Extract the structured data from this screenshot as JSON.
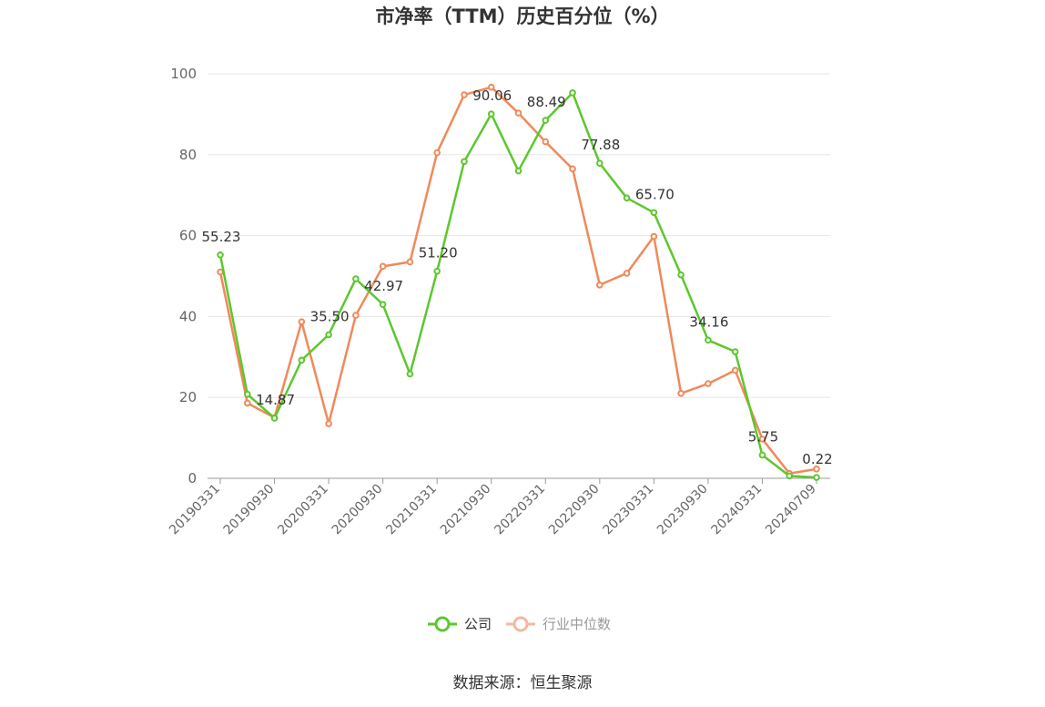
{
  "chart_data": {
    "type": "line",
    "title": "市净率（TTM）历史百分位（%）",
    "xlabel": "",
    "ylabel": "",
    "ylim": [
      0,
      100
    ],
    "yticks": [
      0,
      20,
      40,
      60,
      80,
      100
    ],
    "grid": true,
    "legend_position": "bottom",
    "x": [
      "20190331",
      "20190630",
      "20190930",
      "20191231",
      "20200331",
      "20200630",
      "20200930",
      "20201231",
      "20210331",
      "20210630",
      "20210930",
      "20211231",
      "20220331",
      "20220630",
      "20220930",
      "20221231",
      "20230331",
      "20230630",
      "20230930",
      "20231231",
      "20240331",
      "20240630",
      "20240709"
    ],
    "x_tick_labels": [
      "20190331",
      "20190930",
      "20200331",
      "20200930",
      "20210331",
      "20210930",
      "20220331",
      "20220930",
      "20230331",
      "20230930",
      "20240331",
      "20240709"
    ],
    "series": [
      {
        "name": "公司",
        "color": "#5cc72e",
        "values": [
          55.23,
          20.8,
          14.87,
          29.2,
          35.5,
          49.3,
          42.97,
          25.8,
          51.2,
          78.3,
          90.06,
          76.0,
          88.49,
          95.3,
          77.88,
          69.3,
          65.7,
          50.3,
          34.16,
          31.3,
          5.75,
          0.6,
          0.22
        ]
      },
      {
        "name": "行业中位数",
        "color": "#f0895a",
        "values": [
          51.0,
          18.6,
          15.0,
          38.7,
          13.5,
          40.3,
          52.4,
          53.5,
          80.5,
          94.8,
          96.7,
          90.3,
          83.2,
          76.5,
          47.8,
          50.7,
          59.8,
          21.0,
          23.4,
          26.7,
          9.7,
          1.2,
          2.3
        ]
      }
    ],
    "annotations": [
      {
        "series": 0,
        "index": 0,
        "text": "55.23"
      },
      {
        "series": 0,
        "index": 2,
        "text": "14.87"
      },
      {
        "series": 0,
        "index": 4,
        "text": "35.50"
      },
      {
        "series": 0,
        "index": 6,
        "text": "42.97"
      },
      {
        "series": 0,
        "index": 8,
        "text": "51.20"
      },
      {
        "series": 0,
        "index": 10,
        "text": "90.06"
      },
      {
        "series": 0,
        "index": 12,
        "text": "88.49"
      },
      {
        "series": 0,
        "index": 14,
        "text": "77.88"
      },
      {
        "series": 0,
        "index": 16,
        "text": "65.70"
      },
      {
        "series": 0,
        "index": 18,
        "text": "34.16"
      },
      {
        "series": 0,
        "index": 20,
        "text": "5.75"
      },
      {
        "series": 0,
        "index": 22,
        "text": "0.22"
      }
    ],
    "legend_inactive_color": "#f5b7a0"
  },
  "source": "数据来源：恒生聚源"
}
